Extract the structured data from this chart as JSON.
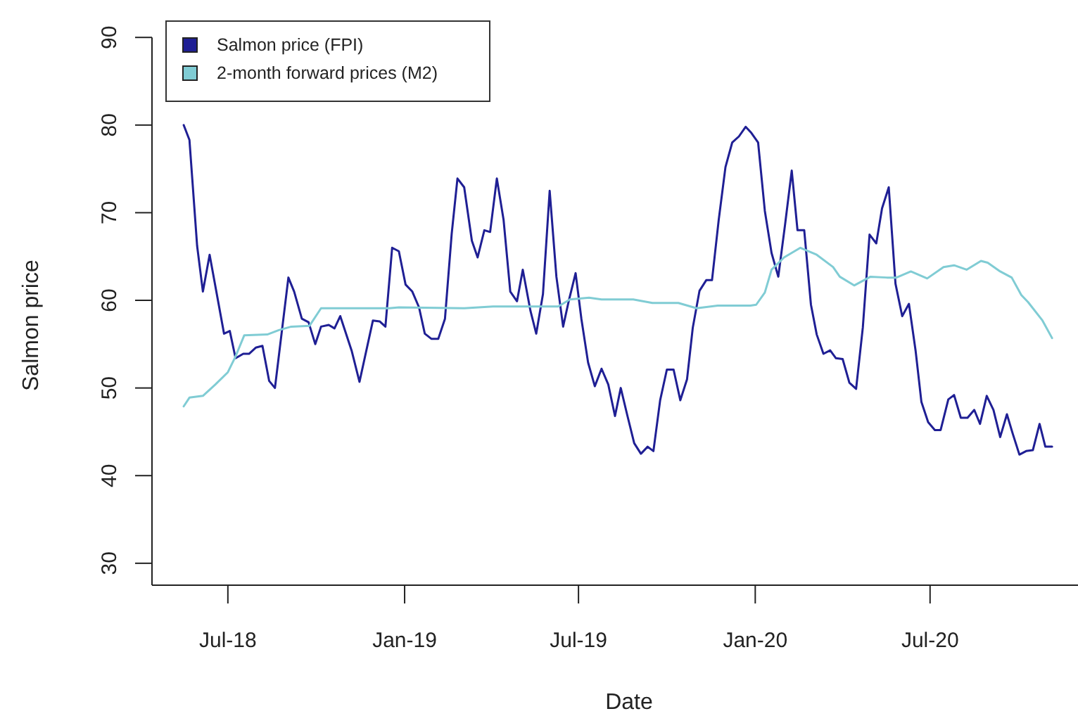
{
  "chart_data": {
    "type": "line",
    "xlabel": "Date",
    "ylabel": "Salmon price",
    "legend": "top left",
    "grid": false,
    "marker": "none",
    "line_style": "solid",
    "xlim": [
      "2018-04-13",
      "2020-12-02"
    ],
    "ylim": [
      27.5,
      90
    ],
    "xticks": [
      {
        "value": "2018-07-01",
        "label": "Jul-18"
      },
      {
        "value": "2019-01-01",
        "label": "Jan-19"
      },
      {
        "value": "2019-07-01",
        "label": "Jul-19"
      },
      {
        "value": "2020-01-01",
        "label": "Jan-20"
      },
      {
        "value": "2020-07-01",
        "label": "Jul-20"
      }
    ],
    "yticks": [
      30,
      40,
      50,
      60,
      70,
      80,
      90
    ],
    "series": [
      {
        "name": "Salmon price (FPI)",
        "color": "#1f1f94",
        "x": [
          "2018-05-16",
          "2018-05-22",
          "2018-05-30",
          "2018-06-05",
          "2018-06-12",
          "2018-06-27",
          "2018-07-03",
          "2018-07-09",
          "2018-07-17",
          "2018-07-23",
          "2018-07-30",
          "2018-08-06",
          "2018-08-13",
          "2018-08-19",
          "2018-09-02",
          "2018-09-08",
          "2018-09-16",
          "2018-09-23",
          "2018-09-30",
          "2018-10-06",
          "2018-10-14",
          "2018-10-20",
          "2018-10-26",
          "2018-11-07",
          "2018-11-15",
          "2018-11-29",
          "2018-12-06",
          "2018-12-12",
          "2018-12-19",
          "2018-12-26",
          "2019-01-02",
          "2019-01-09",
          "2019-01-16",
          "2019-01-22",
          "2019-01-29",
          "2019-02-05",
          "2019-02-12",
          "2019-02-19",
          "2019-02-25",
          "2019-03-04",
          "2019-03-12",
          "2019-03-18",
          "2019-03-25",
          "2019-03-31",
          "2019-04-07",
          "2019-04-14",
          "2019-04-21",
          "2019-04-28",
          "2019-05-04",
          "2019-05-12",
          "2019-05-18",
          "2019-05-25",
          "2019-06-01",
          "2019-06-08",
          "2019-06-15",
          "2019-06-21",
          "2019-06-28",
          "2019-07-04",
          "2019-07-11",
          "2019-07-18",
          "2019-07-25",
          "2019-08-01",
          "2019-08-08",
          "2019-08-14",
          "2019-08-21",
          "2019-08-28",
          "2019-09-04",
          "2019-09-11",
          "2019-09-17",
          "2019-09-24",
          "2019-10-01",
          "2019-10-08",
          "2019-10-15",
          "2019-10-22",
          "2019-10-28",
          "2019-11-04",
          "2019-11-11",
          "2019-11-17",
          "2019-11-24",
          "2019-12-01",
          "2019-12-08",
          "2019-12-15",
          "2019-12-22",
          "2019-12-28",
          "2020-01-04",
          "2020-01-11",
          "2020-01-18",
          "2020-01-25",
          "2020-02-01",
          "2020-02-08",
          "2020-02-14",
          "2020-02-21",
          "2020-02-28",
          "2020-03-05",
          "2020-03-12",
          "2020-03-19",
          "2020-03-25",
          "2020-04-01",
          "2020-04-08",
          "2020-04-15",
          "2020-04-22",
          "2020-04-29",
          "2020-05-06",
          "2020-05-12",
          "2020-05-19",
          "2020-05-26",
          "2020-06-02",
          "2020-06-09",
          "2020-06-16",
          "2020-06-22",
          "2020-06-29",
          "2020-07-06",
          "2020-07-12",
          "2020-07-20",
          "2020-07-26",
          "2020-08-02",
          "2020-08-09",
          "2020-08-16",
          "2020-08-22",
          "2020-08-29",
          "2020-09-05",
          "2020-09-12",
          "2020-09-19",
          "2020-09-25",
          "2020-10-02",
          "2020-10-09",
          "2020-10-16",
          "2020-10-23",
          "2020-10-29",
          "2020-11-05"
        ],
        "values": [
          80.0,
          78.3,
          66.2,
          61.0,
          65.2,
          56.2,
          56.5,
          53.4,
          53.9,
          53.9,
          54.6,
          54.8,
          50.8,
          50.0,
          62.6,
          61.0,
          57.9,
          57.5,
          55.0,
          57.0,
          57.2,
          56.8,
          58.2,
          54.2,
          50.7,
          57.7,
          57.6,
          57.0,
          66.0,
          65.6,
          61.8,
          61.0,
          59.2,
          56.2,
          55.6,
          55.6,
          57.9,
          67.6,
          73.9,
          72.9,
          66.8,
          64.9,
          68.0,
          67.8,
          73.9,
          69.2,
          61.0,
          59.9,
          63.5,
          58.8,
          56.2,
          60.7,
          72.5,
          62.7,
          57.0,
          60.0,
          63.1,
          57.9,
          52.9,
          50.2,
          52.2,
          50.4,
          46.8,
          50.0,
          46.8,
          43.7,
          42.5,
          43.3,
          42.8,
          48.6,
          52.1,
          52.1,
          48.6,
          51.0,
          56.9,
          61.1,
          62.3,
          62.3,
          69.2,
          75.2,
          78.0,
          78.7,
          79.8,
          79.1,
          78.0,
          70.2,
          65.4,
          62.7,
          68.6,
          74.8,
          68.0,
          68.0,
          59.5,
          56.1,
          53.9,
          54.3,
          53.4,
          53.3,
          50.6,
          49.9,
          56.9,
          67.5,
          66.5,
          70.5,
          72.9,
          61.9,
          58.2,
          59.6,
          54.2,
          48.4,
          46.1,
          45.2,
          45.2,
          48.7,
          49.2,
          46.6,
          46.6,
          47.5,
          45.9,
          49.1,
          47.5,
          44.4,
          47.0,
          44.8,
          42.4,
          42.8,
          42.9,
          45.9,
          43.3,
          43.3
        ]
      },
      {
        "name": "2-month forward prices (M2)",
        "color": "#80ccd4",
        "x": [
          "2018-05-16",
          "2018-05-22",
          "2018-06-05",
          "2018-06-18",
          "2018-07-01",
          "2018-07-09",
          "2018-07-18",
          "2018-08-11",
          "2018-08-23",
          "2018-09-05",
          "2018-09-24",
          "2018-10-06",
          "2018-12-16",
          "2018-12-26",
          "2019-03-04",
          "2019-04-03",
          "2019-06-10",
          "2019-06-22",
          "2019-07-12",
          "2019-07-25",
          "2019-08-27",
          "2019-09-16",
          "2019-10-13",
          "2019-11-01",
          "2019-11-23",
          "2019-12-27",
          "2020-01-02",
          "2020-01-11",
          "2020-01-18",
          "2020-01-31",
          "2020-02-17",
          "2020-03-05",
          "2020-03-22",
          "2020-03-29",
          "2020-04-13",
          "2020-04-30",
          "2020-05-17",
          "2020-05-27",
          "2020-06-11",
          "2020-06-28",
          "2020-07-15",
          "2020-07-26",
          "2020-08-08",
          "2020-08-23",
          "2020-08-30",
          "2020-09-12",
          "2020-09-24",
          "2020-10-04",
          "2020-10-11",
          "2020-10-26",
          "2020-11-05"
        ],
        "values": [
          47.9,
          48.9,
          49.1,
          50.4,
          51.8,
          53.6,
          56.0,
          56.1,
          56.6,
          57.0,
          57.1,
          59.1,
          59.1,
          59.2,
          59.1,
          59.3,
          59.3,
          60.1,
          60.3,
          60.1,
          60.1,
          59.7,
          59.7,
          59.1,
          59.4,
          59.4,
          59.5,
          60.9,
          63.5,
          64.9,
          66.0,
          65.2,
          63.8,
          62.7,
          61.7,
          62.7,
          62.6,
          62.6,
          63.3,
          62.5,
          63.8,
          64.0,
          63.5,
          64.5,
          64.3,
          63.3,
          62.6,
          60.6,
          59.8,
          57.7,
          55.7
        ]
      }
    ]
  }
}
